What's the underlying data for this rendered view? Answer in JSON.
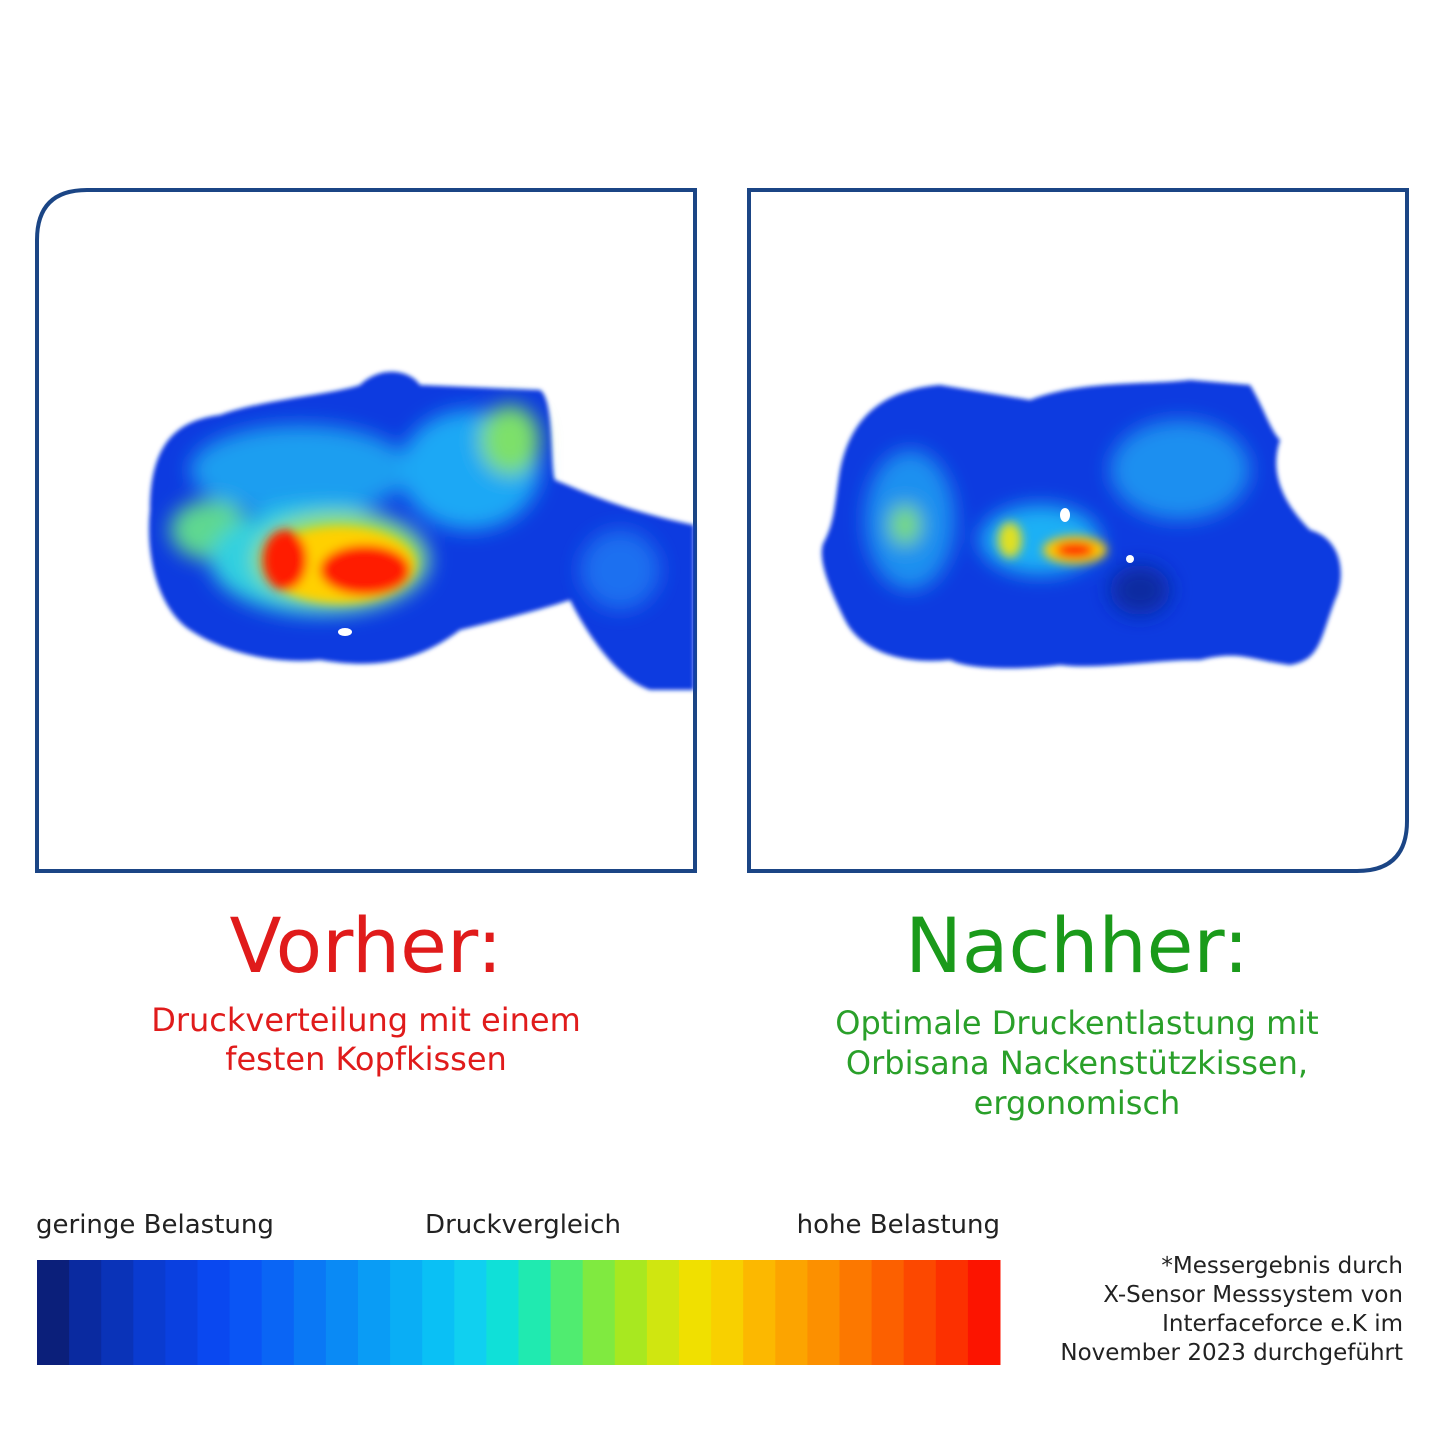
{
  "before": {
    "title": "Vorher:",
    "caption": [
      "Druckverteilung mit einem",
      "festen Kopfkissen"
    ]
  },
  "after": {
    "title": "Nachher:",
    "caption": [
      "Optimale Druckentlastung mit",
      "Orbisana Nackenstützkissen,",
      "ergonomisch"
    ]
  },
  "legend": {
    "low": "geringe Belastung",
    "title": "Druckvergleich",
    "high": "hohe Belastung"
  },
  "note": [
    "*Messergebnis durch",
    "X-Sensor Messsystem von",
    "Interfaceforce e.K im",
    "November 2023 durchgeführt"
  ]
}
